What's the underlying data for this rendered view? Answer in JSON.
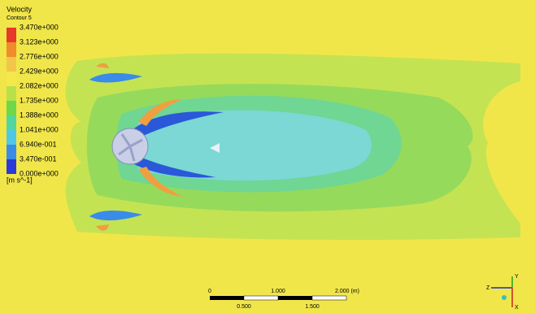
{
  "legend": {
    "title": "Velocity",
    "subtitle": "Contour 5",
    "labels": [
      "3.470e+000",
      "3.123e+000",
      "2.776e+000",
      "2.429e+000",
      "2.082e+000",
      "1.735e+000",
      "1.388e+000",
      "1.041e+000",
      "6.940e-001",
      "3.470e-001",
      "0.000e+000"
    ],
    "unit": "[m s^-1]"
  },
  "scale_bar": {
    "top_labels": [
      "0",
      "1.000",
      "2.000 (m)"
    ],
    "bottom_labels": [
      "0.500",
      "1.500"
    ]
  },
  "triad": {
    "labels": [
      "Z",
      "Y",
      "X"
    ]
  }
}
